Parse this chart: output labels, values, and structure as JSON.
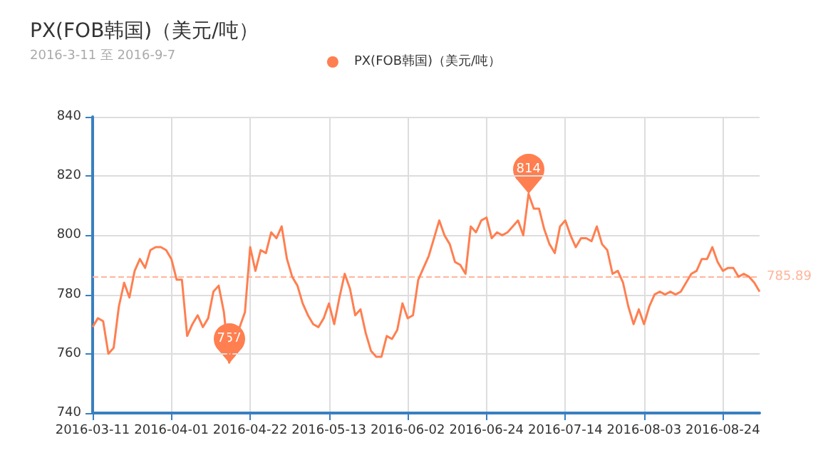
{
  "chart_data": {
    "type": "line",
    "title": "PX(FOB韩国)（美元/吨）",
    "subtitle": "2016-3-11 至 2016-9-7",
    "categories": [
      "2016-03-11",
      null,
      null,
      null,
      null,
      null,
      null,
      null,
      null,
      null,
      null,
      null,
      null,
      null,
      null,
      "2016-04-01",
      null,
      null,
      null,
      null,
      null,
      null,
      null,
      null,
      null,
      null,
      null,
      null,
      null,
      null,
      "2016-04-22",
      null,
      null,
      null,
      null,
      null,
      null,
      null,
      null,
      null,
      null,
      null,
      null,
      null,
      null,
      "2016-05-13",
      null,
      null,
      null,
      null,
      null,
      null,
      null,
      null,
      null,
      null,
      null,
      null,
      null,
      null,
      "2016-06-02",
      null,
      null,
      null,
      null,
      null,
      null,
      null,
      null,
      null,
      null,
      null,
      null,
      null,
      null,
      "2016-06-24",
      null,
      null,
      null,
      null,
      null,
      null,
      null,
      null,
      null,
      null,
      null,
      null,
      null,
      null,
      "2016-07-14",
      null,
      null,
      null,
      null,
      null,
      null,
      null,
      null,
      null,
      null,
      null,
      null,
      null,
      null,
      "2016-08-03",
      null,
      null,
      null,
      null,
      null,
      null,
      null,
      null,
      null,
      null,
      null,
      null,
      null,
      null,
      "2016-08-24",
      null,
      null,
      null,
      null,
      null,
      null,
      null
    ],
    "series": [
      {
        "name": "PX(FOB韩国)（美元/吨）",
        "color": "#ff7f50",
        "values": [
          769,
          772,
          771,
          760,
          762,
          776,
          784,
          779,
          788,
          792,
          789,
          795,
          796,
          796,
          795,
          792,
          785,
          785,
          766,
          770,
          773,
          769,
          772,
          781,
          783,
          774,
          757,
          764,
          769,
          774,
          796,
          788,
          795,
          794,
          801,
          799,
          803,
          792,
          786,
          783,
          777,
          773,
          770,
          769,
          772,
          777,
          770,
          779,
          787,
          782,
          773,
          775,
          767,
          761,
          759,
          759,
          766,
          765,
          768,
          777,
          772,
          773,
          785,
          789,
          793,
          799,
          805,
          800,
          797,
          791,
          790,
          787,
          803,
          801,
          805,
          806,
          799,
          801,
          800,
          801,
          803,
          805,
          800,
          814,
          809,
          809,
          802,
          797,
          794,
          803,
          805,
          800,
          796,
          799,
          799,
          798,
          803,
          797,
          795,
          787,
          788,
          784,
          776,
          770,
          775,
          770,
          776,
          780,
          781,
          780,
          781,
          780,
          781,
          784,
          787,
          788,
          792,
          792,
          796,
          791,
          788,
          789,
          789,
          786,
          787,
          786,
          784,
          781
        ]
      }
    ],
    "ylim": [
      740,
      840
    ],
    "yticks": [
      740,
      760,
      780,
      800,
      820,
      840
    ],
    "grid": true,
    "legend": "top",
    "annotations": [
      {
        "text": "814",
        "y": 814
      },
      {
        "text": "757",
        "y": 757
      }
    ],
    "ref_lines": [
      {
        "axis": "y",
        "value": 785.89,
        "label": "785.89",
        "color": "#ffb59c",
        "line_style": "dashed"
      }
    ]
  }
}
